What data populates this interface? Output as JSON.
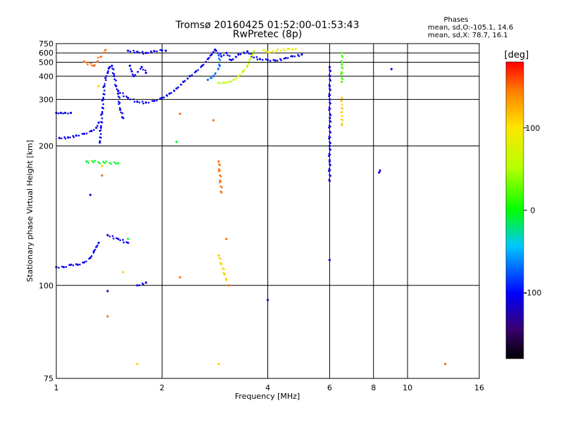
{
  "chart_data": {
    "type": "scatter",
    "title": "Tromsø 20160425 01:52:00-01:53:43",
    "subtitle": "RwPretec (8p)",
    "phase_stats": {
      "heading": "Phases",
      "line_o": "mean, sd,O:-105.1, 14.6",
      "line_x": "mean, sd,X:  78.7, 16.1"
    },
    "xlabel": "Frequency [MHz]",
    "ylabel": "Stationary phase Virtual Height [km]",
    "xscale": "log",
    "yscale": "reciprocal",
    "xlim": [
      1,
      16
    ],
    "ylim": [
      75,
      750
    ],
    "xticks": [
      1,
      2,
      4,
      6,
      8,
      10,
      16
    ],
    "yticks": [
      75,
      100,
      200,
      300,
      400,
      500,
      600,
      750
    ],
    "grid": true,
    "colorbar": {
      "label": "[deg]",
      "range": [
        -180,
        180
      ],
      "ticks": [
        100,
        0,
        -100
      ]
    },
    "traces": [
      {
        "name": "",
        "phase": -105,
        "points": [
          [
            1.0,
            107
          ],
          [
            1.05,
            107
          ],
          [
            1.1,
            108
          ],
          [
            1.15,
            108
          ],
          [
            1.2,
            109
          ],
          [
            1.25,
            111
          ],
          [
            1.28,
            114
          ],
          [
            1.3,
            116
          ],
          [
            1.32,
            118
          ]
        ]
      },
      {
        "name": "",
        "phase": -105,
        "points": [
          [
            1.02,
            212
          ],
          [
            1.08,
            213
          ],
          [
            1.14,
            216
          ],
          [
            1.2,
            219
          ],
          [
            1.26,
            224
          ],
          [
            1.3,
            230
          ],
          [
            1.32,
            240
          ]
        ]
      },
      {
        "name": "",
        "phase": -105,
        "points": [
          [
            1.0,
            262
          ],
          [
            1.03,
            262
          ],
          [
            1.06,
            262
          ],
          [
            1.1,
            262
          ]
        ]
      },
      {
        "name": "",
        "phase": -105,
        "points": [
          [
            1.33,
            205
          ],
          [
            1.34,
            230
          ],
          [
            1.35,
            260
          ],
          [
            1.36,
            300
          ],
          [
            1.37,
            350
          ],
          [
            1.38,
            390
          ],
          [
            1.4,
            420
          ],
          [
            1.41,
            450
          ],
          [
            1.42,
            460
          ],
          [
            1.44,
            470
          ],
          [
            1.46,
            400
          ],
          [
            1.48,
            350
          ],
          [
            1.5,
            320
          ],
          [
            1.52,
            270
          ],
          [
            1.55,
            250
          ]
        ]
      },
      {
        "name": "",
        "phase": -105,
        "points": [
          [
            1.5,
            330
          ],
          [
            1.6,
            305
          ],
          [
            1.7,
            293
          ],
          [
            1.8,
            290
          ],
          [
            1.9,
            295
          ],
          [
            2.0,
            305
          ],
          [
            2.1,
            320
          ],
          [
            2.2,
            340
          ],
          [
            2.3,
            370
          ],
          [
            2.4,
            400
          ],
          [
            2.5,
            430
          ],
          [
            2.6,
            470
          ],
          [
            2.7,
            530
          ],
          [
            2.75,
            570
          ],
          [
            2.8,
            610
          ],
          [
            2.83,
            645
          ]
        ]
      },
      {
        "name": "",
        "phase": -105,
        "points": [
          [
            1.6,
            630
          ],
          [
            1.7,
            615
          ],
          [
            1.8,
            600
          ],
          [
            1.9,
            625
          ],
          [
            2.0,
            635
          ],
          [
            2.05,
            630
          ]
        ]
      },
      {
        "name": "",
        "phase": -105,
        "points": [
          [
            1.62,
            470
          ],
          [
            1.64,
            430
          ],
          [
            1.66,
            400
          ],
          [
            1.75,
            460
          ],
          [
            1.8,
            420
          ]
        ]
      },
      {
        "name": "",
        "phase": -105,
        "points": [
          [
            2.85,
            630
          ],
          [
            2.95,
            560
          ],
          [
            3.05,
            600
          ],
          [
            3.15,
            520
          ],
          [
            3.3,
            580
          ],
          [
            3.5,
            620
          ],
          [
            3.6,
            560
          ],
          [
            3.8,
            530
          ],
          [
            4.0,
            520
          ],
          [
            4.2,
            515
          ],
          [
            4.5,
            540
          ],
          [
            4.7,
            560
          ],
          [
            5.0,
            580
          ]
        ]
      },
      {
        "name": "",
        "phase": 60,
        "points": [
          [
            2.9,
            365
          ],
          [
            3.0,
            366
          ],
          [
            3.1,
            370
          ],
          [
            3.2,
            380
          ],
          [
            3.3,
            400
          ],
          [
            3.4,
            430
          ],
          [
            3.5,
            470
          ],
          [
            3.55,
            520
          ],
          [
            3.6,
            570
          ],
          [
            3.65,
            620
          ]
        ]
      },
      {
        "name": "",
        "phase": 90,
        "points": [
          [
            3.9,
            640
          ],
          [
            4.0,
            610
          ],
          [
            4.6,
            660
          ],
          [
            4.7,
            645
          ],
          [
            4.8,
            655
          ]
        ]
      },
      {
        "name": "",
        "phase": -70,
        "points": [
          [
            2.9,
            570
          ],
          [
            2.92,
            470
          ],
          [
            2.8,
            400
          ],
          [
            2.7,
            380
          ]
        ]
      },
      {
        "name": "",
        "phase": -105,
        "points": [
          [
            1.4,
            122
          ],
          [
            1.5,
            120
          ],
          [
            1.6,
            118
          ],
          [
            1.7,
            100
          ],
          [
            1.8,
            101
          ]
        ]
      },
      {
        "name": "",
        "phase": -110,
        "points": [
          [
            6.0,
            460
          ],
          [
            6.01,
            400
          ],
          [
            6.0,
            350
          ],
          [
            6.0,
            300
          ],
          [
            6.01,
            250
          ],
          [
            6.0,
            200
          ],
          [
            6.0,
            180
          ],
          [
            6.0,
            160
          ],
          [
            6.0,
            110
          ]
        ]
      },
      {
        "name": "",
        "phase": -110,
        "points": [
          [
            8.3,
            168
          ],
          [
            8.35,
            170
          ],
          [
            9.0,
            445
          ]
        ]
      },
      {
        "name": "",
        "phase": 20,
        "points": [
          [
            6.5,
            600
          ],
          [
            6.5,
            480
          ],
          [
            6.5,
            370
          ]
        ]
      },
      {
        "name": "",
        "phase": 150,
        "points": [
          [
            1.38,
            640
          ],
          [
            1.28,
            470
          ],
          [
            1.2,
            505
          ],
          [
            1.35,
            165
          ],
          [
            1.4,
            90
          ],
          [
            2.25,
            260
          ],
          [
            2.8,
            245
          ],
          [
            2.9,
            180
          ],
          [
            2.95,
            150
          ],
          [
            3.05,
            120
          ],
          [
            3.1,
            100
          ],
          [
            2.25,
            103
          ],
          [
            12.8,
            78
          ]
        ]
      },
      {
        "name": "",
        "phase": 110,
        "points": [
          [
            1.32,
            350
          ],
          [
            1.35,
            175
          ],
          [
            1.55,
            105
          ],
          [
            2.9,
            112
          ],
          [
            3.05,
            102
          ],
          [
            2.9,
            78
          ],
          [
            1.7,
            78
          ],
          [
            6.5,
            235
          ],
          [
            6.5,
            305
          ]
        ]
      },
      {
        "name": "",
        "phase": -5,
        "points": [
          [
            2.2,
            206
          ],
          [
            1.6,
            120
          ],
          [
            1.5,
            178
          ],
          [
            1.22,
            180
          ]
        ]
      },
      {
        "name": "",
        "phase": -120,
        "points": [
          [
            4.0,
            95
          ],
          [
            1.25,
            148
          ],
          [
            1.4,
            98
          ]
        ]
      }
    ]
  }
}
